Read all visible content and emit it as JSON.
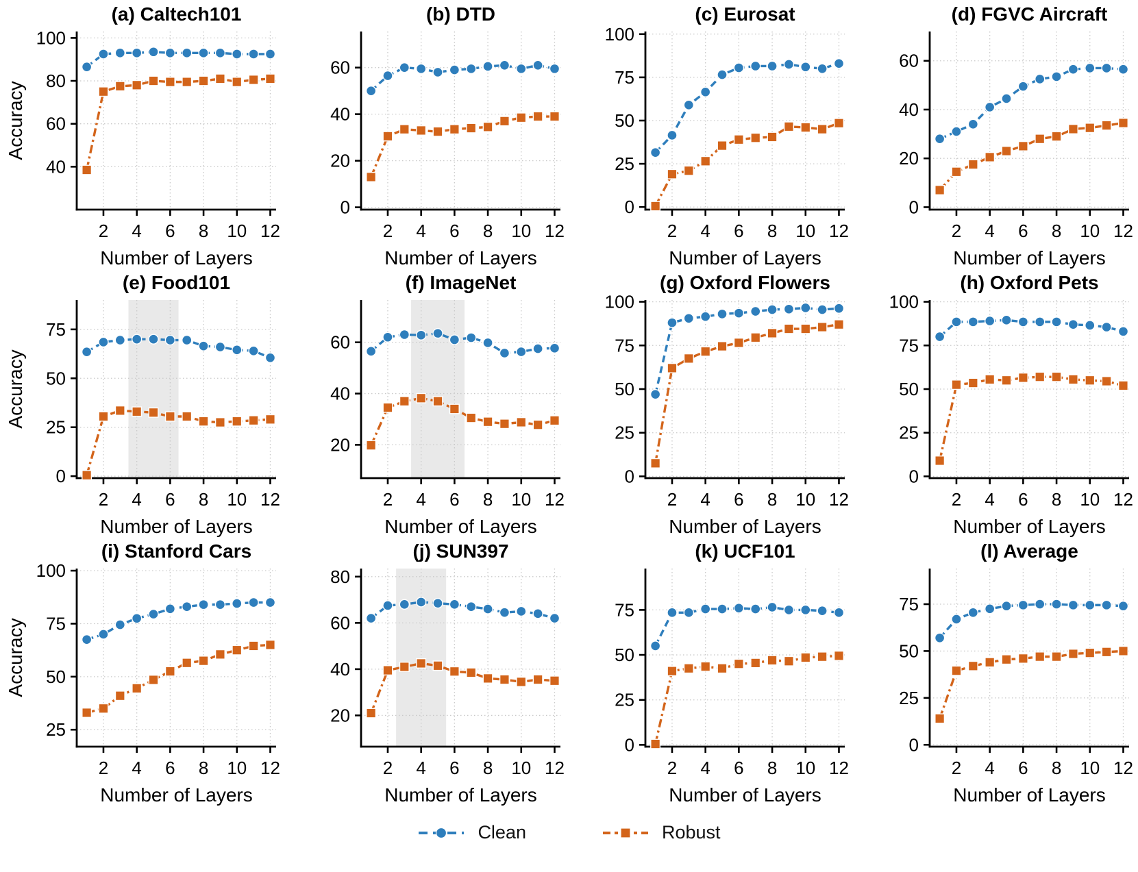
{
  "figure_title": "",
  "axes": {
    "xlabel": "Number of Layers",
    "ylabel": "Accuracy",
    "x": [
      1,
      2,
      3,
      4,
      5,
      6,
      7,
      8,
      9,
      10,
      11,
      12
    ],
    "xticks": [
      2,
      4,
      6,
      8,
      10,
      12
    ],
    "xlim": [
      0.4,
      12.35
    ]
  },
  "colors": {
    "clean": "#2e7ebc",
    "robust": "#d3641a",
    "grid": "#c9c9c9",
    "shade": "#e9e9e9",
    "axis": "#000000"
  },
  "legend": {
    "items": [
      {
        "label": "Clean",
        "marker": "circle",
        "color": "#2e7ebc"
      },
      {
        "label": "Robust",
        "marker": "square",
        "color": "#d3641a"
      }
    ]
  },
  "chart_data": [
    {
      "type": "line",
      "key": "caltech101",
      "title": "(a) Caltech101",
      "ylabel": "Accuracy",
      "ylim": [
        20,
        103
      ],
      "yticks": [
        40,
        60,
        80,
        100
      ],
      "shaded_x": null,
      "series": [
        {
          "name": "Clean",
          "values": [
            86.5,
            92.5,
            93,
            93,
            93.5,
            93,
            93,
            93,
            93,
            92.5,
            92.5,
            92.5
          ]
        },
        {
          "name": "Robust",
          "values": [
            38.5,
            75,
            77.5,
            78,
            80,
            79.5,
            79.5,
            80,
            81,
            79.5,
            80.5,
            81
          ]
        }
      ]
    },
    {
      "type": "line",
      "key": "dtd",
      "title": "(b) DTD",
      "ylabel": null,
      "ylim": [
        -1,
        75.5
      ],
      "yticks": [
        0,
        20,
        40,
        60
      ],
      "shaded_x": null,
      "series": [
        {
          "name": "Clean",
          "values": [
            50,
            56.5,
            60,
            59.5,
            58,
            59,
            59.5,
            60.5,
            61,
            59.5,
            61,
            59.5
          ]
        },
        {
          "name": "Robust",
          "values": [
            13,
            30.5,
            33.5,
            33,
            32.5,
            33.5,
            34,
            34.5,
            37,
            38.5,
            39,
            39
          ]
        }
      ]
    },
    {
      "type": "line",
      "key": "eurosat",
      "title": "(c) Eurosat",
      "ylabel": null,
      "ylim": [
        -1.5,
        101.5
      ],
      "yticks": [
        0,
        25,
        50,
        75,
        100
      ],
      "shaded_x": null,
      "series": [
        {
          "name": "Clean",
          "values": [
            31.5,
            41.5,
            59,
            66.5,
            76.5,
            80.5,
            81.5,
            81.5,
            82.5,
            81,
            80,
            83
          ]
        },
        {
          "name": "Robust",
          "values": [
            0.5,
            19,
            21,
            26.5,
            35.5,
            39,
            40,
            40.5,
            46.5,
            46,
            45,
            48.5
          ]
        }
      ]
    },
    {
      "type": "line",
      "key": "fgvc-aircraft",
      "title": "(d) FGVC Aircraft",
      "ylabel": null,
      "ylim": [
        -1,
        72
      ],
      "yticks": [
        0,
        20,
        40,
        60
      ],
      "shaded_x": null,
      "series": [
        {
          "name": "Clean",
          "values": [
            28,
            31,
            34,
            41,
            44.5,
            49.5,
            52.5,
            53.5,
            56.5,
            57,
            57,
            56.5
          ]
        },
        {
          "name": "Robust",
          "values": [
            7,
            14.5,
            17.5,
            20.5,
            23,
            25,
            28,
            29,
            32,
            32.5,
            33.5,
            34.5
          ]
        }
      ]
    },
    {
      "type": "line",
      "key": "food101",
      "title": "(e) Food101",
      "ylabel": "Accuracy",
      "ylim": [
        -1,
        90
      ],
      "yticks": [
        0,
        25,
        50,
        75
      ],
      "shaded_x": [
        3.5,
        6.5
      ],
      "series": [
        {
          "name": "Clean",
          "values": [
            63.5,
            68.5,
            69.5,
            70,
            70,
            69.5,
            69.5,
            66.5,
            66,
            64.5,
            64,
            60.5
          ]
        },
        {
          "name": "Robust",
          "values": [
            0.5,
            30.5,
            33.5,
            33,
            32.5,
            30.5,
            30.5,
            28,
            27.5,
            28,
            28.5,
            29
          ]
        }
      ]
    },
    {
      "type": "line",
      "key": "imagenet",
      "title": "(f) ImageNet",
      "ylabel": null,
      "ylim": [
        7,
        76.5
      ],
      "yticks": [
        20,
        40,
        60
      ],
      "shaded_x": [
        3.4,
        6.6
      ],
      "series": [
        {
          "name": "Clean",
          "values": [
            56.5,
            62,
            63,
            62.8,
            63.5,
            61,
            61.8,
            59.8,
            55.8,
            56.3,
            57.5,
            57.7
          ]
        },
        {
          "name": "Robust",
          "values": [
            19.8,
            34.5,
            37,
            38.2,
            37,
            34,
            30.5,
            29,
            28.2,
            28.8,
            27.8,
            29.5
          ]
        }
      ]
    },
    {
      "type": "line",
      "key": "oxford-flowers",
      "title": "(g) Oxford Flowers",
      "ylabel": null,
      "ylim": [
        -1,
        101
      ],
      "yticks": [
        0,
        25,
        50,
        75,
        100
      ],
      "shaded_x": null,
      "series": [
        {
          "name": "Clean",
          "values": [
            47,
            88,
            90.5,
            91.5,
            93,
            93.5,
            94.5,
            95.5,
            95.8,
            96.5,
            95.5,
            96.2
          ]
        },
        {
          "name": "Robust",
          "values": [
            7.5,
            62,
            67.5,
            71.5,
            74.5,
            76.5,
            79.5,
            82,
            84.5,
            84.5,
            85.5,
            87
          ]
        }
      ]
    },
    {
      "type": "line",
      "key": "oxford-pets",
      "title": "(h) Oxford Pets",
      "ylabel": null,
      "ylim": [
        -1,
        101
      ],
      "yticks": [
        0,
        25,
        50,
        75,
        100
      ],
      "shaded_x": null,
      "series": [
        {
          "name": "Clean",
          "values": [
            80,
            88.5,
            88.5,
            89,
            89.5,
            88.5,
            88.5,
            88.5,
            87,
            86.5,
            85.5,
            83
          ]
        },
        {
          "name": "Robust",
          "values": [
            9,
            52.5,
            53.5,
            55.5,
            55,
            56.5,
            57,
            57,
            55.5,
            55,
            54.5,
            52
          ]
        }
      ]
    },
    {
      "type": "line",
      "key": "stanford-cars",
      "title": "(i) Stanford Cars",
      "ylabel": "Accuracy",
      "ylim": [
        17,
        101
      ],
      "yticks": [
        25,
        50,
        75,
        100
      ],
      "shaded_x": null,
      "series": [
        {
          "name": "Clean",
          "values": [
            67.5,
            70,
            74.5,
            77.5,
            79.5,
            82,
            83,
            84,
            84,
            84.5,
            85,
            85
          ]
        },
        {
          "name": "Robust",
          "values": [
            33,
            35,
            41,
            44.5,
            48.5,
            52.5,
            56.5,
            57.5,
            60.5,
            62.5,
            64.5,
            65
          ]
        }
      ]
    },
    {
      "type": "line",
      "key": "sun397",
      "title": "(j) SUN397",
      "ylabel": null,
      "ylim": [
        6.5,
        83.5
      ],
      "yticks": [
        20,
        40,
        60,
        80
      ],
      "shaded_x": [
        2.5,
        5.5
      ],
      "series": [
        {
          "name": "Clean",
          "values": [
            62,
            67.5,
            68,
            69,
            68.5,
            68,
            67,
            66,
            64.5,
            65,
            64,
            62
          ]
        },
        {
          "name": "Robust",
          "values": [
            21,
            39.5,
            41,
            42.5,
            41.5,
            39,
            38.5,
            36,
            35.5,
            34.5,
            35.5,
            35
          ]
        }
      ]
    },
    {
      "type": "line",
      "key": "ucf101",
      "title": "(k) UCF101",
      "ylabel": null,
      "ylim": [
        -1,
        98
      ],
      "yticks": [
        0,
        25,
        50,
        75
      ],
      "shaded_x": null,
      "series": [
        {
          "name": "Clean",
          "values": [
            55,
            73.5,
            73.5,
            75.5,
            75.5,
            76,
            75.5,
            76.5,
            75,
            75,
            74.5,
            73.5
          ]
        },
        {
          "name": "Robust",
          "values": [
            0.5,
            41,
            42.5,
            43.5,
            42.5,
            45,
            45.5,
            47,
            46.5,
            48.5,
            49,
            49.5
          ]
        }
      ]
    },
    {
      "type": "line",
      "key": "average",
      "title": "(l) Average",
      "ylabel": null,
      "ylim": [
        -1,
        94
      ],
      "yticks": [
        0,
        25,
        50,
        75
      ],
      "shaded_x": null,
      "series": [
        {
          "name": "Clean",
          "values": [
            57,
            67,
            70.5,
            72.5,
            74,
            74.5,
            75,
            75,
            74.5,
            74.5,
            74.5,
            74
          ]
        },
        {
          "name": "Robust",
          "values": [
            14,
            39.5,
            42,
            44,
            45.5,
            46,
            47,
            47,
            48.5,
            49,
            49.5,
            50
          ]
        }
      ]
    }
  ]
}
